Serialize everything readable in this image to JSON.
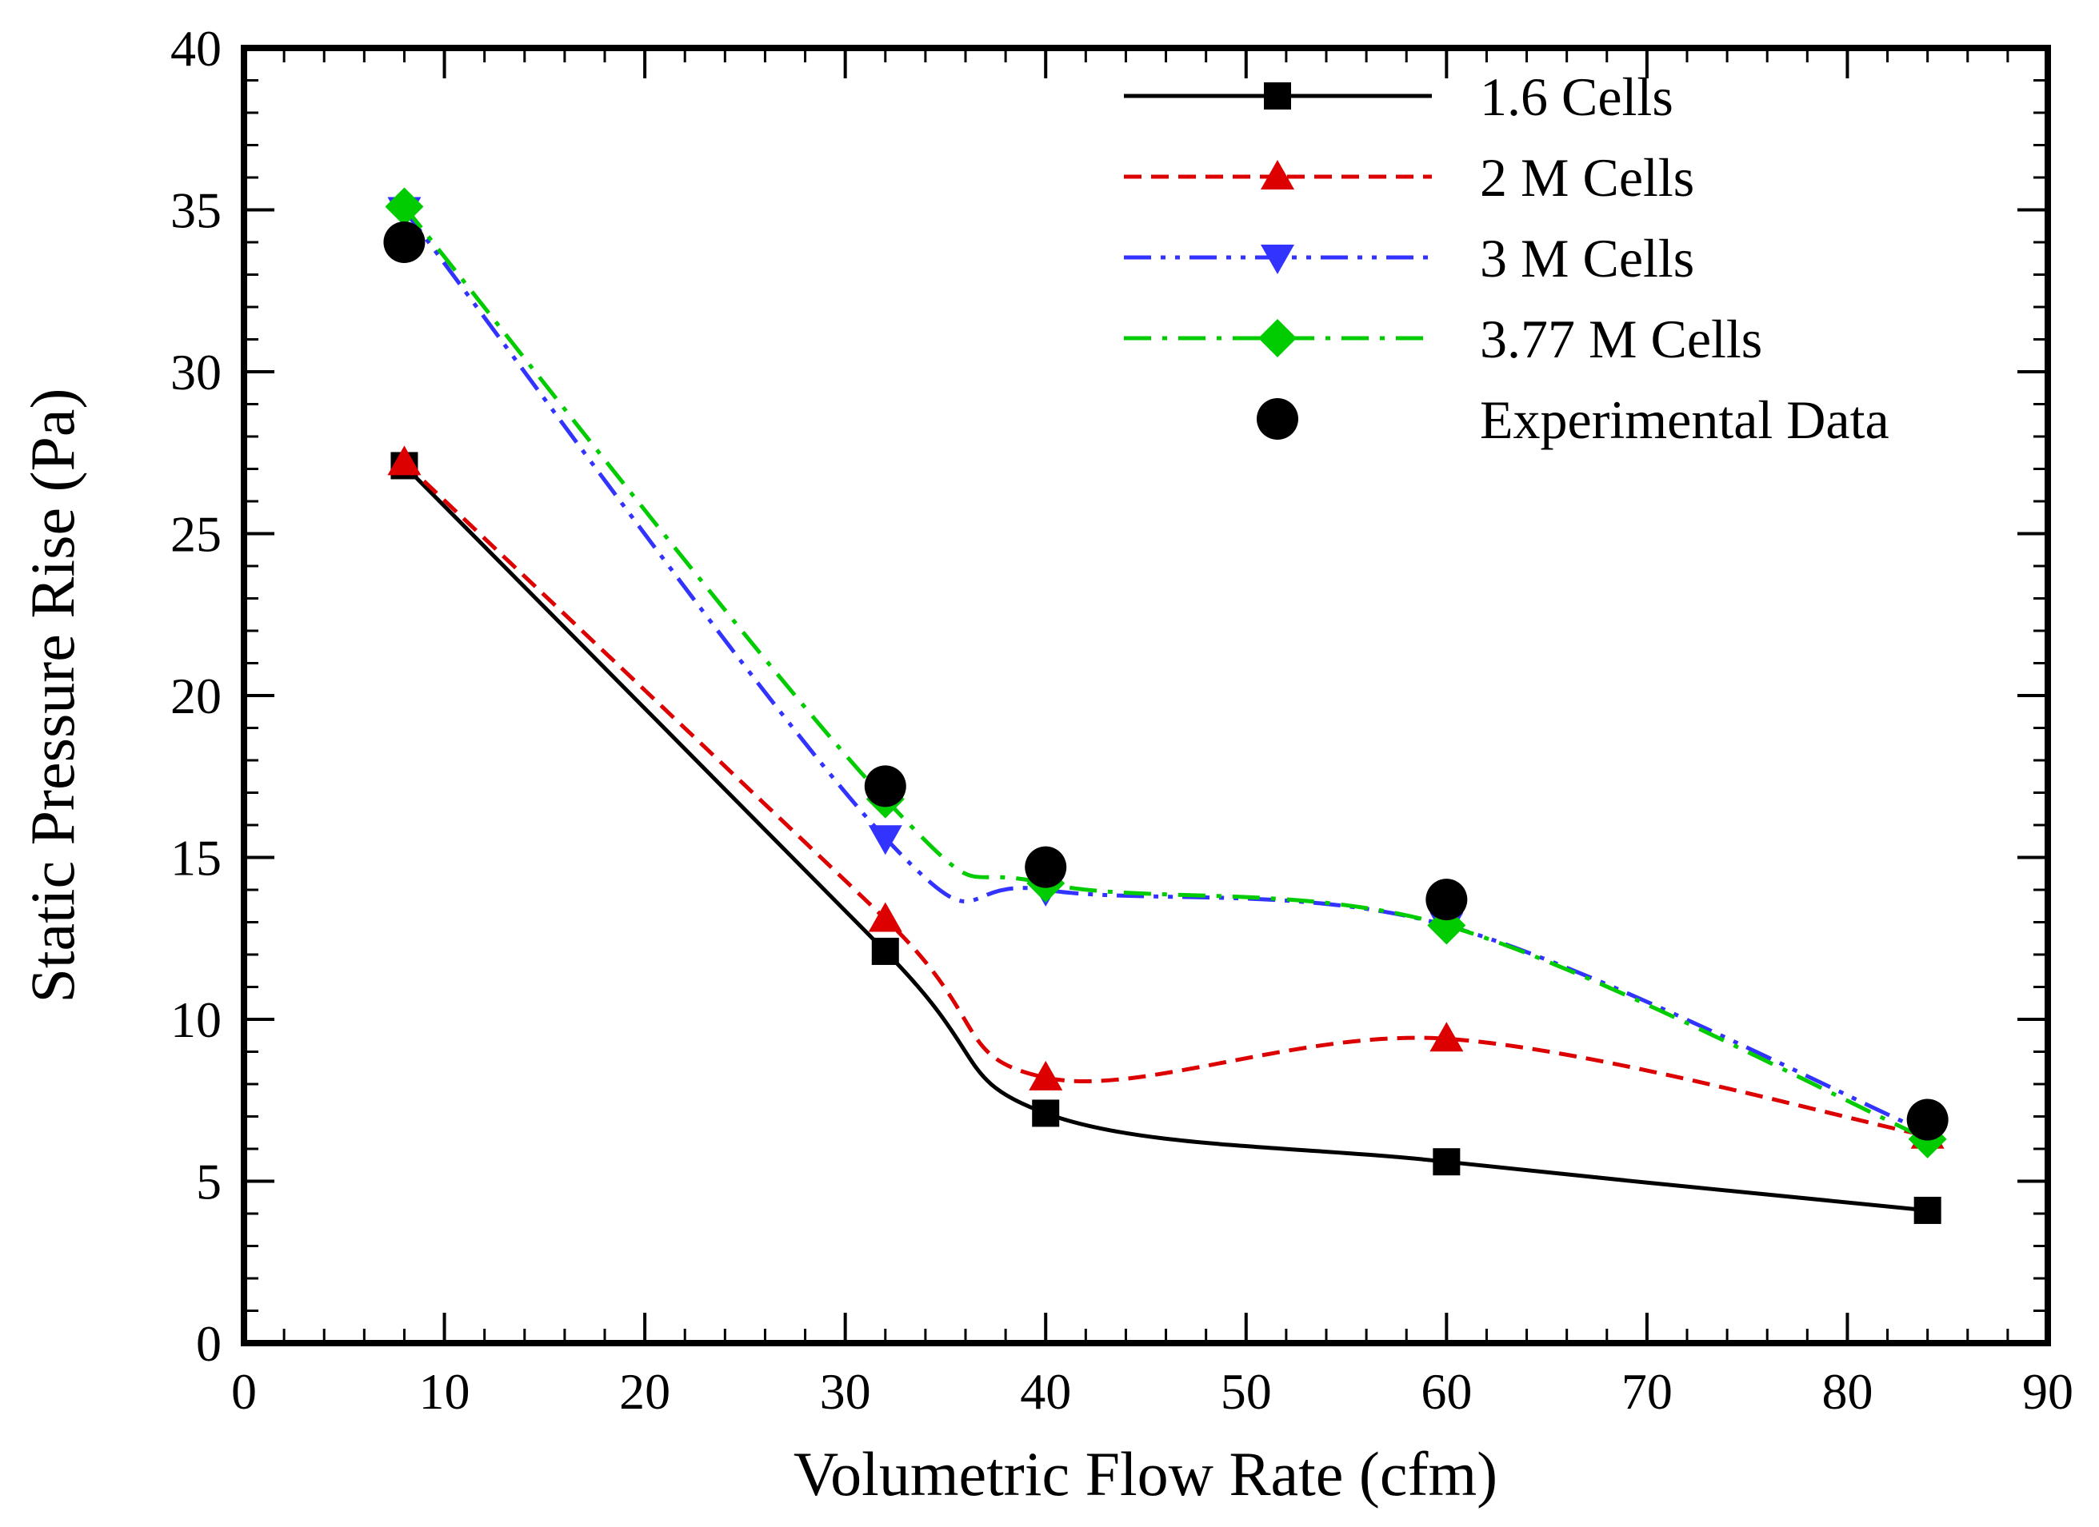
{
  "chart_data": {
    "type": "line",
    "title": "",
    "xlabel": "Volumetric Flow Rate (cfm)",
    "ylabel": "Static Pressure Rise (Pa)",
    "xlim": [
      0,
      90
    ],
    "ylim": [
      0,
      40
    ],
    "xticks": [
      0,
      10,
      20,
      30,
      40,
      50,
      60,
      70,
      80,
      90
    ],
    "yticks": [
      0,
      5,
      10,
      15,
      20,
      25,
      30,
      35,
      40
    ],
    "xtick_labels": [
      "0",
      "10",
      "20",
      "30",
      "40",
      "50",
      "60",
      "70",
      "80",
      "90"
    ],
    "ytick_labels": [
      "0",
      "5",
      "10",
      "15",
      "20",
      "25",
      "30",
      "35",
      "40"
    ],
    "x_minor_step": 2,
    "y_minor_step": 1,
    "grid": false,
    "legend_position": "top-right",
    "x": [
      8,
      32,
      40,
      60,
      84
    ],
    "series": [
      {
        "name": "1.6  Cells",
        "values": [
          27.1,
          12.1,
          7.1,
          5.6,
          4.1
        ],
        "color": "#000000",
        "line_style": "solid",
        "marker": "square"
      },
      {
        "name": "2 M Cells",
        "values": [
          27.2,
          13.1,
          8.2,
          9.4,
          6.4
        ],
        "color": "#dd0000",
        "line_style": "dashed",
        "marker": "triangle-up"
      },
      {
        "name": "3 M Cells",
        "values": [
          35.0,
          15.6,
          14.0,
          12.9,
          6.5
        ],
        "color": "#3333ff",
        "line_style": "dash-dot-dot",
        "marker": "triangle-down"
      },
      {
        "name": "3.77 M Cells",
        "values": [
          35.1,
          16.8,
          14.2,
          12.9,
          6.3
        ],
        "color": "#00cc00",
        "line_style": "dash-dot",
        "marker": "diamond"
      },
      {
        "name": "Experimental Data",
        "values": [
          34.0,
          17.2,
          14.7,
          13.7,
          6.9
        ],
        "color": "#000000",
        "line_style": "none",
        "marker": "circle"
      }
    ]
  }
}
